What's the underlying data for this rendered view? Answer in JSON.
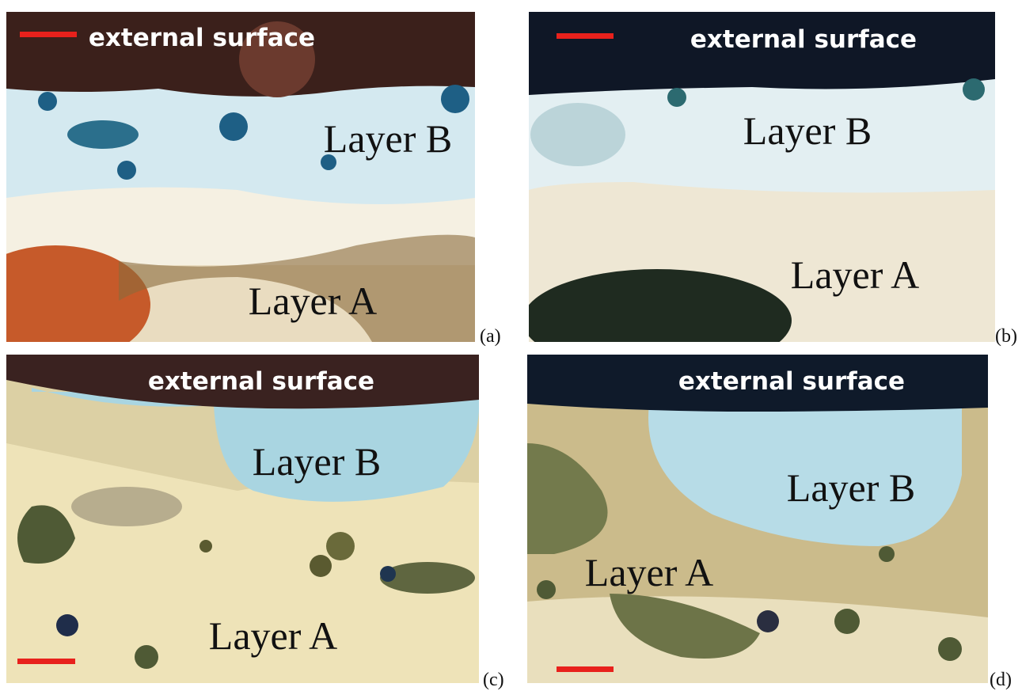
{
  "panels": [
    {
      "surface": "external surface",
      "layer_b": "Layer B",
      "layer_a": "Layer A",
      "label": "(a)"
    },
    {
      "surface": "external surface",
      "layer_b": "Layer B",
      "layer_a": "Layer A",
      "label": "(b)"
    },
    {
      "surface": "external surface",
      "layer_b": "Layer B",
      "layer_a": "Layer A",
      "label": "(c)"
    },
    {
      "surface": "external surface",
      "layer_b": "Layer B",
      "layer_a": "Layer A",
      "label": "(d)"
    }
  ]
}
